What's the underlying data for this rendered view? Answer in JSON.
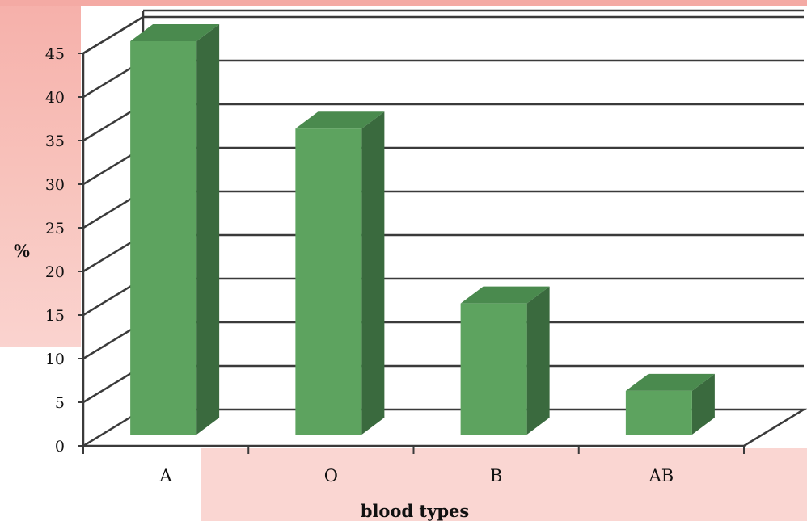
{
  "chart_data": {
    "type": "bar",
    "style": "3d-column",
    "categories": [
      "A",
      "O",
      "B",
      "AB"
    ],
    "values": [
      45,
      35,
      15,
      5
    ],
    "xlabel": "blood types",
    "ylabel": "%",
    "ylim": [
      0,
      45
    ],
    "yticks": [
      0,
      5,
      10,
      15,
      20,
      25,
      30,
      35,
      40,
      45
    ],
    "grid": true,
    "legend": "none",
    "colors": {
      "bar_front": "#5da35f",
      "bar_side": "#3a6a3e",
      "bar_top": "#4a8a4e",
      "grid": "#3a3a3a",
      "background_accent": "#f8c4bd"
    }
  }
}
